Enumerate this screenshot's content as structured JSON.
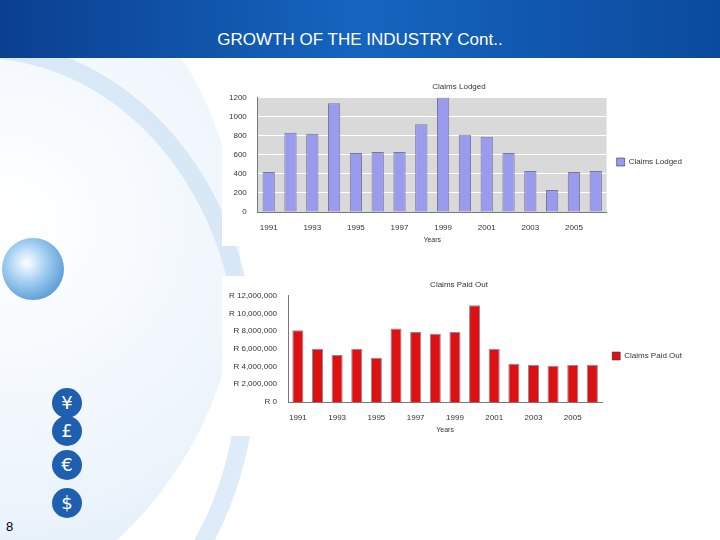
{
  "slide": {
    "title": "GROWTH OF THE INDUSTRY Cont..",
    "page_number": 8,
    "icons": [
      "¥",
      "£",
      "€",
      "$"
    ]
  },
  "chart_data": [
    {
      "type": "bar",
      "title": "Claims Lodged",
      "x_label": "Years",
      "categories": [
        "1991",
        null,
        "1993",
        null,
        "1995",
        null,
        "1997",
        null,
        "1999",
        null,
        "2001",
        null,
        "2003",
        null,
        "2005",
        null
      ],
      "series": [
        {
          "name": "Claims Lodged",
          "color": "#9a9aef",
          "values": [
            420,
            830,
            820,
            1140,
            620,
            630,
            630,
            920,
            1200,
            810,
            790,
            620,
            430,
            230,
            420,
            430
          ]
        }
      ],
      "ylim": [
        0,
        1200
      ],
      "yticks": [
        0,
        200,
        400,
        600,
        800,
        1000,
        1200
      ],
      "grid": true,
      "legend": "right"
    },
    {
      "type": "bar",
      "title": "Claims Paid Out",
      "x_label": "Years",
      "categories": [
        "1991",
        null,
        "1993",
        null,
        "1995",
        null,
        "1997",
        null,
        "1999",
        null,
        "2001",
        null,
        "2003",
        null,
        "2005",
        null
      ],
      "series": [
        {
          "name": "Claims Paid Out",
          "color": "#dd1111",
          "values": [
            8100000,
            6000000,
            5300000,
            6000000,
            5000000,
            8300000,
            7900000,
            7700000,
            7900000,
            10900000,
            6000000,
            4300000,
            4200000,
            4100000,
            4200000,
            4200000
          ]
        }
      ],
      "ylim": [
        0,
        12000000
      ],
      "yticks": [
        {
          "value": 0,
          "label": "R 0"
        },
        {
          "value": 2000000,
          "label": "R 2,000,000"
        },
        {
          "value": 4000000,
          "label": "R 4,000,000"
        },
        {
          "value": 6000000,
          "label": "R 6,000,000"
        },
        {
          "value": 8000000,
          "label": "R 8,000,000"
        },
        {
          "value": 10000000,
          "label": "R 10,000,000"
        },
        {
          "value": 12000000,
          "label": "R 12,000,000"
        }
      ],
      "grid": false,
      "legend": "right"
    }
  ]
}
